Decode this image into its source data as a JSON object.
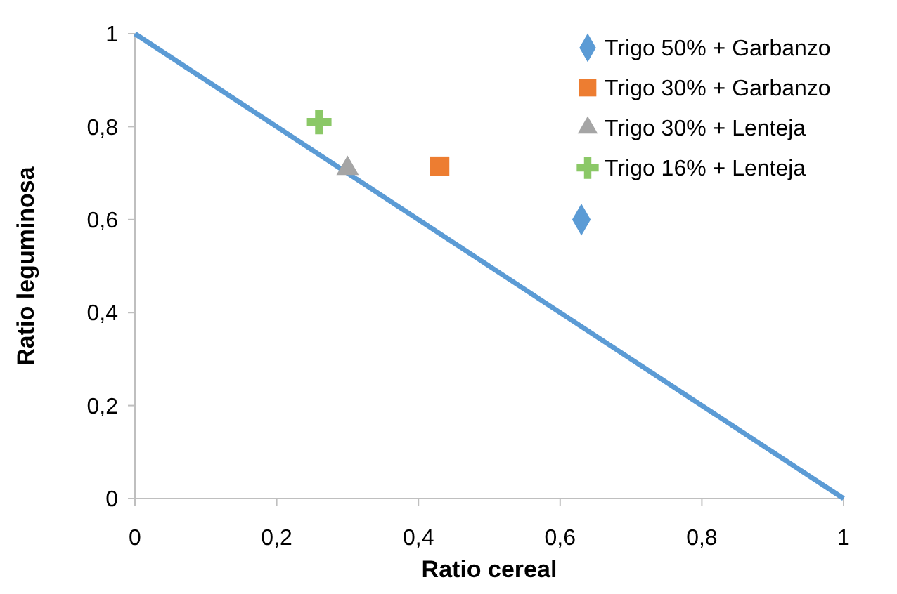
{
  "chart_data": {
    "type": "scatter",
    "xlabel": "Ratio cereal",
    "ylabel": "Ratio leguminosa",
    "xlim": [
      0,
      1
    ],
    "ylim": [
      0,
      1
    ],
    "xticks": [
      0,
      {
        "value": 0.2,
        "label": "0,2"
      },
      {
        "value": 0.4,
        "label": "0,4"
      },
      {
        "value": 0.6,
        "label": "0,6"
      },
      {
        "value": 0.8,
        "label": "0,8"
      },
      1
    ],
    "yticks": [
      0,
      {
        "value": 0.2,
        "label": "0,2"
      },
      {
        "value": 0.4,
        "label": "0,4"
      },
      {
        "value": 0.6,
        "label": "0,6"
      },
      {
        "value": 0.8,
        "label": "0,8"
      },
      1
    ],
    "grid": false,
    "legend": "top right",
    "series": [
      {
        "type": "line",
        "color": "#5b9bd5",
        "x": [
          0,
          1
        ],
        "values": [
          1,
          0
        ],
        "marker": "none",
        "line_style": "solid"
      },
      {
        "name": "Trigo 50% + Garbanzo",
        "color": "#5b9bd5",
        "x": [
          0.63
        ],
        "values": [
          0.6
        ],
        "marker": "diamond"
      },
      {
        "name": "Trigo 30% + Garbanzo",
        "color": "#ed7d31",
        "x": [
          0.43
        ],
        "values": [
          0.715
        ],
        "marker": "square"
      },
      {
        "name": "Trigo 30% + Lenteja",
        "color": "#a5a5a5",
        "x": [
          0.3
        ],
        "values": [
          0.71
        ],
        "marker": "triangle"
      },
      {
        "name": "Trigo 16% + Lenteja",
        "color": "#8bc867",
        "x": [
          0.26
        ],
        "values": [
          0.81
        ],
        "marker": "cross"
      }
    ]
  }
}
